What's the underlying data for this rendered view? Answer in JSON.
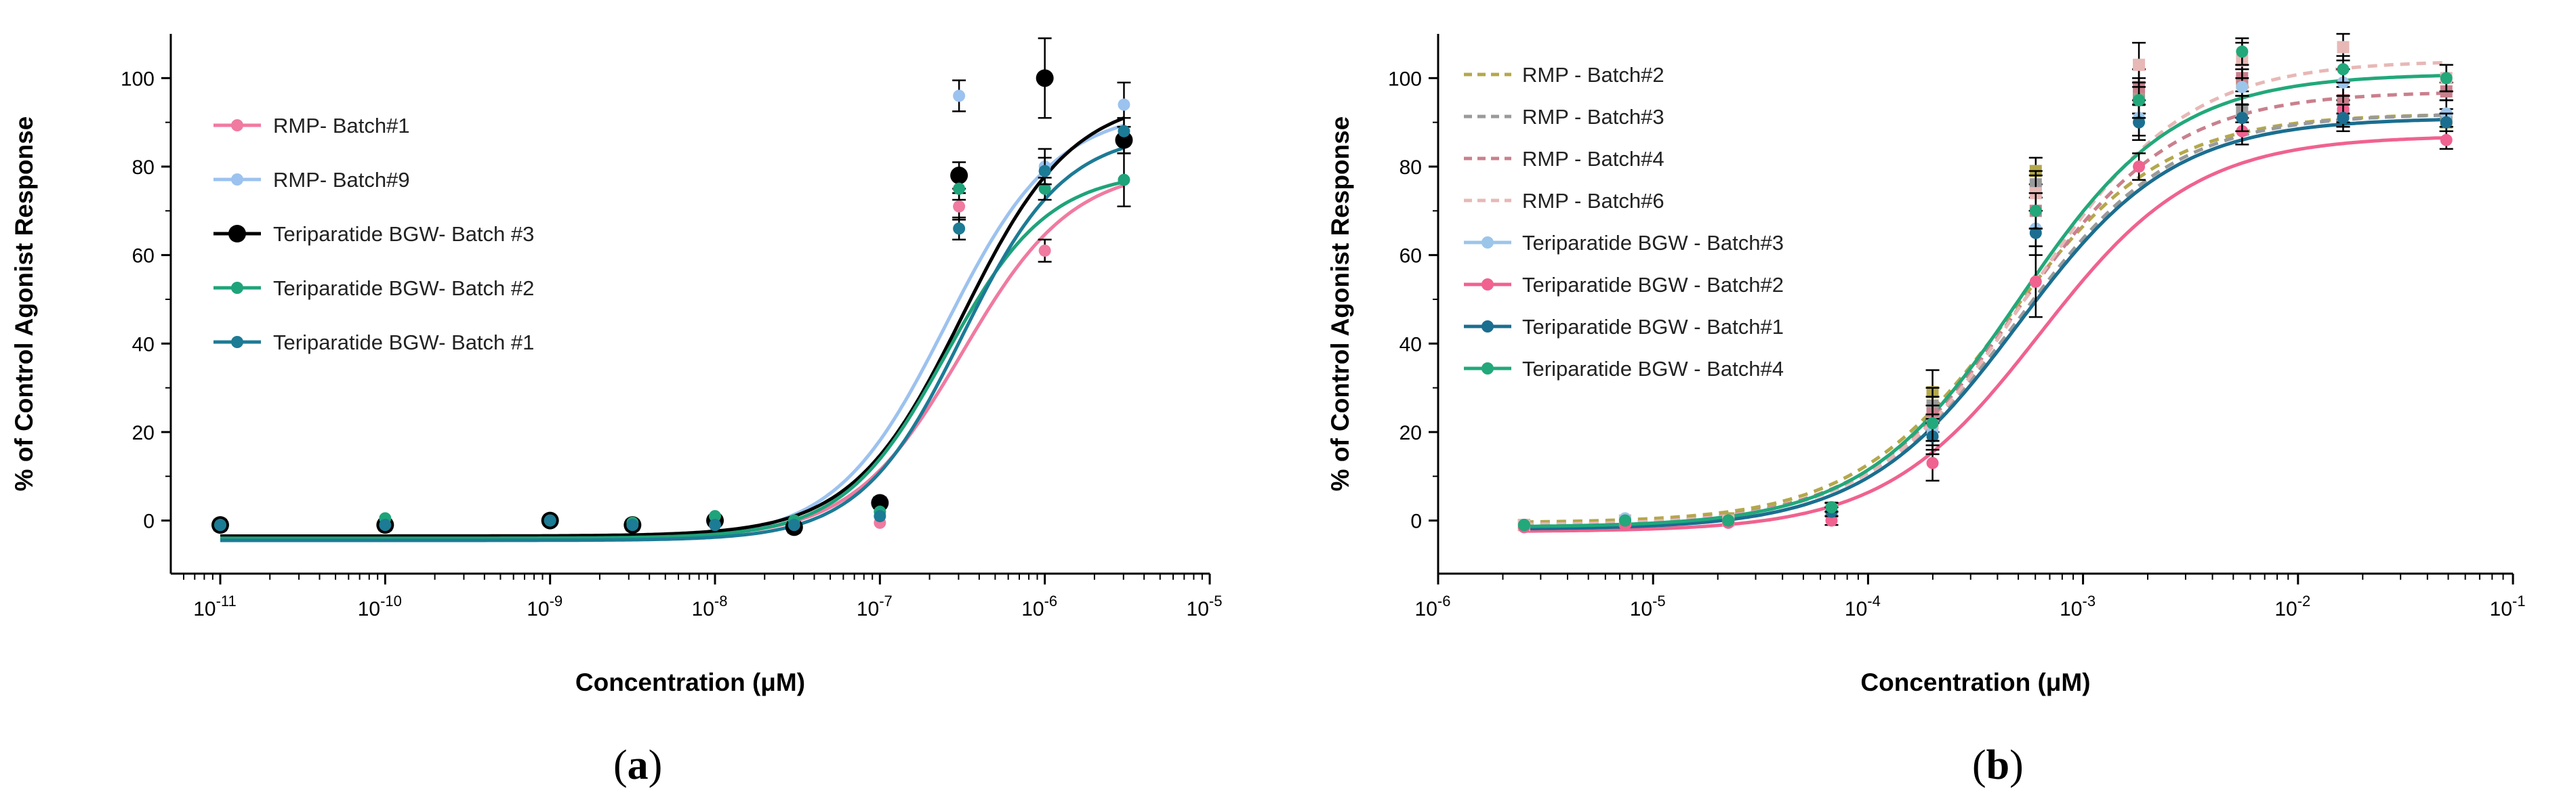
{
  "chart_data": [
    {
      "panel_label": "(a)",
      "type": "line",
      "xscale": "log",
      "xlabel": "Concentration (μM)",
      "ylabel": "% of Control Agonist Response",
      "xlim_exp": [
        -11.3,
        -5
      ],
      "ylim": [
        -12,
        110
      ],
      "x_ticks": [
        {
          "base": "10",
          "exp": "-11"
        },
        {
          "base": "10",
          "exp": "-10"
        },
        {
          "base": "10",
          "exp": "-9"
        },
        {
          "base": "10",
          "exp": "-8"
        },
        {
          "base": "10",
          "exp": "-7"
        },
        {
          "base": "10",
          "exp": "-6"
        },
        {
          "base": "10",
          "exp": "-5"
        }
      ],
      "y_ticks": [
        "0",
        "20",
        "40",
        "60",
        "80",
        "100"
      ],
      "legend_position": "upper-left",
      "series": [
        {
          "name": "RMP- Batch#1",
          "color": "#f07aa0",
          "marker_size": 9,
          "dashed": false,
          "fit": {
            "bottom": -4,
            "top": 80,
            "logEC50": -6.5,
            "hill": 1.3
          },
          "points": [
            {
              "x": -11,
              "y": -1,
              "err": 0
            },
            {
              "x": -10,
              "y": -1,
              "err": 0
            },
            {
              "x": -9,
              "y": 0,
              "err": 0
            },
            {
              "x": -8.5,
              "y": -1,
              "err": 0
            },
            {
              "x": -8,
              "y": 0,
              "err": 0
            },
            {
              "x": -7.52,
              "y": -1,
              "err": 0
            },
            {
              "x": -7,
              "y": -0.5,
              "err": 0
            },
            {
              "x": -6.52,
              "y": 71,
              "err": 3
            },
            {
              "x": -6,
              "y": 61,
              "err": 2.5
            },
            {
              "x": -5.52,
              "y": 86,
              "err": 3
            }
          ]
        },
        {
          "name": "RMP- Batch#9",
          "color": "#9cc2ef",
          "marker_size": 9,
          "dashed": false,
          "fit": {
            "bottom": -4.5,
            "top": 93,
            "logEC50": -6.6,
            "hill": 1.3
          },
          "points": [
            {
              "x": -11,
              "y": -1,
              "err": 0
            },
            {
              "x": -10,
              "y": -1,
              "err": 0
            },
            {
              "x": -9,
              "y": 0,
              "err": 0
            },
            {
              "x": -8.5,
              "y": -1,
              "err": 0
            },
            {
              "x": -8,
              "y": 0.5,
              "err": 0
            },
            {
              "x": -7.52,
              "y": -1,
              "err": 0
            },
            {
              "x": -7,
              "y": 2,
              "err": 0
            },
            {
              "x": -6.52,
              "y": 96,
              "err": 3.5
            },
            {
              "x": -6,
              "y": 80,
              "err": 4
            },
            {
              "x": -5.52,
              "y": 94,
              "err": 5
            }
          ]
        },
        {
          "name": "Teriparatide BGW- Batch #3",
          "color": "#000000",
          "marker_size": 13,
          "dashed": false,
          "fit": {
            "bottom": -3.5,
            "top": 96,
            "logEC50": -6.5,
            "hill": 1.3
          },
          "points": [
            {
              "x": -11,
              "y": -1,
              "err": 1.2
            },
            {
              "x": -10,
              "y": -1,
              "err": 1.2
            },
            {
              "x": -9,
              "y": 0,
              "err": 1
            },
            {
              "x": -8.5,
              "y": -1,
              "err": 1.2
            },
            {
              "x": -8,
              "y": 0,
              "err": 1
            },
            {
              "x": -7.52,
              "y": -1.5,
              "err": 1.2
            },
            {
              "x": -7,
              "y": 4,
              "err": 1.2
            },
            {
              "x": -6.52,
              "y": 78,
              "err": 3
            },
            {
              "x": -6,
              "y": 100,
              "err": 9
            },
            {
              "x": -5.52,
              "y": 86,
              "err": 3
            }
          ]
        },
        {
          "name": "Teriparatide BGW- Batch #2",
          "color": "#1fa37a",
          "marker_size": 9,
          "dashed": false,
          "fit": {
            "bottom": -4,
            "top": 79,
            "logEC50": -6.6,
            "hill": 1.4
          },
          "points": [
            {
              "x": -11,
              "y": -1,
              "err": 0
            },
            {
              "x": -10,
              "y": 0.5,
              "err": 0
            },
            {
              "x": -9,
              "y": 0,
              "err": 0
            },
            {
              "x": -8.5,
              "y": -0.5,
              "err": 0
            },
            {
              "x": -8,
              "y": 1,
              "err": 0
            },
            {
              "x": -7.52,
              "y": 0,
              "err": 0
            },
            {
              "x": -7,
              "y": 2,
              "err": 0
            },
            {
              "x": -6.52,
              "y": 75,
              "err": 2.5
            },
            {
              "x": -6,
              "y": 75,
              "err": 2.5
            },
            {
              "x": -5.52,
              "y": 77,
              "err": 6
            }
          ]
        },
        {
          "name": "Teriparatide BGW- Batch #1",
          "color": "#1c7b95",
          "marker_size": 9,
          "dashed": false,
          "fit": {
            "bottom": -4.5,
            "top": 88,
            "logEC50": -6.5,
            "hill": 1.4
          },
          "points": [
            {
              "x": -11,
              "y": -1,
              "err": 0
            },
            {
              "x": -10,
              "y": -1,
              "err": 0
            },
            {
              "x": -9,
              "y": 0,
              "err": 0
            },
            {
              "x": -8.5,
              "y": -1,
              "err": 0
            },
            {
              "x": -8,
              "y": -1,
              "err": 0
            },
            {
              "x": -7.52,
              "y": -1,
              "err": 0
            },
            {
              "x": -7,
              "y": 1,
              "err": 0
            },
            {
              "x": -6.52,
              "y": 66,
              "err": 2.5
            },
            {
              "x": -6,
              "y": 79,
              "err": 3
            },
            {
              "x": -5.52,
              "y": 88,
              "err": 3
            }
          ]
        }
      ]
    },
    {
      "panel_label": "(b)",
      "type": "line",
      "xscale": "log",
      "xlabel": "Concentration (μM)",
      "ylabel": "% of Control Agonist Response",
      "xlim_exp": [
        -6,
        -1
      ],
      "ylim": [
        -12,
        110
      ],
      "x_ticks": [
        {
          "base": "10",
          "exp": "-6"
        },
        {
          "base": "10",
          "exp": "-5"
        },
        {
          "base": "10",
          "exp": "-4"
        },
        {
          "base": "10",
          "exp": "-3"
        },
        {
          "base": "10",
          "exp": "-2"
        },
        {
          "base": "10",
          "exp": "-1"
        }
      ],
      "y_ticks": [
        "0",
        "20",
        "40",
        "60",
        "80",
        "100"
      ],
      "legend_position": "upper-left",
      "series": [
        {
          "name": "RMP - Batch#2",
          "color": "#b4a84c",
          "marker_size": 9,
          "dashed": true,
          "fit": {
            "bottom": -0.5,
            "top": 92,
            "logEC50": -3.35,
            "hill": 1.2
          },
          "points": [
            {
              "x": -5.6,
              "y": -1,
              "err": 0
            },
            {
              "x": -5.13,
              "y": 0,
              "err": 0
            },
            {
              "x": -4.65,
              "y": 0.5,
              "err": 0
            },
            {
              "x": -4.17,
              "y": 3,
              "err": 1
            },
            {
              "x": -3.7,
              "y": 29,
              "err": 5
            },
            {
              "x": -3.22,
              "y": 79,
              "err": 3
            },
            {
              "x": -2.74,
              "y": 96,
              "err": 4
            },
            {
              "x": -2.26,
              "y": 99,
              "err": 3
            },
            {
              "x": -1.79,
              "y": 92,
              "err": 3
            },
            {
              "x": -1.31,
              "y": 90,
              "err": 2
            }
          ]
        },
        {
          "name": "RMP - Batch#3",
          "color": "#9a9a9a",
          "marker_size": 9,
          "dashed": true,
          "fit": {
            "bottom": -1,
            "top": 92,
            "logEC50": -3.3,
            "hill": 1.2
          },
          "points": [
            {
              "x": -5.6,
              "y": -1,
              "err": 0
            },
            {
              "x": -5.13,
              "y": 0,
              "err": 0
            },
            {
              "x": -4.65,
              "y": 0,
              "err": 0
            },
            {
              "x": -4.17,
              "y": 3,
              "err": 1
            },
            {
              "x": -3.7,
              "y": 26,
              "err": 4
            },
            {
              "x": -3.22,
              "y": 76,
              "err": 3
            },
            {
              "x": -2.74,
              "y": 95,
              "err": 4
            },
            {
              "x": -2.26,
              "y": 93,
              "err": 3
            },
            {
              "x": -1.79,
              "y": 92,
              "err": 3
            },
            {
              "x": -1.31,
              "y": 91,
              "err": 2
            }
          ]
        },
        {
          "name": "RMP - Batch#4",
          "color": "#c9808d",
          "marker_size": 9,
          "dashed": true,
          "fit": {
            "bottom": -1,
            "top": 97,
            "logEC50": -3.3,
            "hill": 1.2
          },
          "points": [
            {
              "x": -5.6,
              "y": -1,
              "err": 0
            },
            {
              "x": -5.13,
              "y": 0,
              "err": 0
            },
            {
              "x": -4.65,
              "y": 0,
              "err": 0
            },
            {
              "x": -4.17,
              "y": 2,
              "err": 1
            },
            {
              "x": -3.7,
              "y": 24,
              "err": 4
            },
            {
              "x": -3.22,
              "y": 70,
              "err": 4
            },
            {
              "x": -2.74,
              "y": 98,
              "err": 4
            },
            {
              "x": -2.26,
              "y": 100,
              "err": 3
            },
            {
              "x": -1.79,
              "y": 95,
              "err": 3
            },
            {
              "x": -1.31,
              "y": 97,
              "err": 2
            }
          ]
        },
        {
          "name": "RMP - Batch#6",
          "color": "#e7b8b6",
          "marker_size": 9,
          "dashed": true,
          "fit": {
            "bottom": -1,
            "top": 104,
            "logEC50": -3.25,
            "hill": 1.2
          },
          "points": [
            {
              "x": -5.6,
              "y": -1,
              "err": 0
            },
            {
              "x": -5.13,
              "y": 0,
              "err": 0
            },
            {
              "x": -4.65,
              "y": 0,
              "err": 0
            },
            {
              "x": -4.17,
              "y": 3,
              "err": 1
            },
            {
              "x": -3.7,
              "y": 22,
              "err": 4
            },
            {
              "x": -3.22,
              "y": 74,
              "err": 4
            },
            {
              "x": -2.74,
              "y": 103,
              "err": 5
            },
            {
              "x": -2.26,
              "y": 104,
              "err": 4
            },
            {
              "x": -1.79,
              "y": 107,
              "err": 3
            },
            {
              "x": -1.31,
              "y": 100,
              "err": 3
            }
          ]
        },
        {
          "name": "Teriparatide BGW - Batch#3",
          "color": "#9cc5ea",
          "marker_size": 9,
          "dashed": false,
          "fit": {
            "bottom": -2,
            "top": 91,
            "logEC50": -3.3,
            "hill": 1.2
          },
          "points": [
            {
              "x": -5.6,
              "y": -1,
              "err": 0
            },
            {
              "x": -5.13,
              "y": 0.5,
              "err": 0
            },
            {
              "x": -4.65,
              "y": 0,
              "err": 0
            },
            {
              "x": -4.17,
              "y": 3,
              "err": 1
            },
            {
              "x": -3.7,
              "y": 20,
              "err": 4
            },
            {
              "x": -3.22,
              "y": 66,
              "err": 4
            },
            {
              "x": -2.74,
              "y": 91,
              "err": 4
            },
            {
              "x": -2.26,
              "y": 98,
              "err": 4
            },
            {
              "x": -1.79,
              "y": 99,
              "err": 3
            },
            {
              "x": -1.31,
              "y": 92,
              "err": 3
            }
          ]
        },
        {
          "name": "Teriparatide BGW - Batch#2",
          "color": "#f0628f",
          "marker_size": 9,
          "dashed": false,
          "fit": {
            "bottom": -2.5,
            "top": 87,
            "logEC50": -3.2,
            "hill": 1.2
          },
          "points": [
            {
              "x": -5.6,
              "y": -1.5,
              "err": 0
            },
            {
              "x": -5.13,
              "y": -1,
              "err": 0
            },
            {
              "x": -4.65,
              "y": -0.5,
              "err": 0
            },
            {
              "x": -4.17,
              "y": 0,
              "err": 1
            },
            {
              "x": -3.7,
              "y": 13,
              "err": 4
            },
            {
              "x": -3.22,
              "y": 54,
              "err": 8
            },
            {
              "x": -2.74,
              "y": 80,
              "err": 3
            },
            {
              "x": -2.26,
              "y": 88,
              "err": 3
            },
            {
              "x": -1.79,
              "y": 93,
              "err": 3
            },
            {
              "x": -1.31,
              "y": 86,
              "err": 2
            }
          ]
        },
        {
          "name": "Teriparatide BGW - Batch#1",
          "color": "#1b6e8f",
          "marker_size": 9,
          "dashed": false,
          "fit": {
            "bottom": -2,
            "top": 91,
            "logEC50": -3.3,
            "hill": 1.2
          },
          "points": [
            {
              "x": -5.6,
              "y": -1,
              "err": 0
            },
            {
              "x": -5.13,
              "y": 0,
              "err": 0
            },
            {
              "x": -4.65,
              "y": 0,
              "err": 0
            },
            {
              "x": -4.17,
              "y": 2,
              "err": 1
            },
            {
              "x": -3.7,
              "y": 19,
              "err": 4
            },
            {
              "x": -3.22,
              "y": 65,
              "err": 5
            },
            {
              "x": -2.74,
              "y": 90,
              "err": 4
            },
            {
              "x": -2.26,
              "y": 91,
              "err": 3
            },
            {
              "x": -1.79,
              "y": 91,
              "err": 3
            },
            {
              "x": -1.31,
              "y": 90,
              "err": 2
            }
          ]
        },
        {
          "name": "Teriparatide BGW - Batch#4",
          "color": "#22a87a",
          "marker_size": 9,
          "dashed": false,
          "fit": {
            "bottom": -1.5,
            "top": 101,
            "logEC50": -3.3,
            "hill": 1.2
          },
          "points": [
            {
              "x": -5.6,
              "y": -1,
              "err": 0
            },
            {
              "x": -5.13,
              "y": 0,
              "err": 0
            },
            {
              "x": -4.65,
              "y": 0,
              "err": 0
            },
            {
              "x": -4.17,
              "y": 3,
              "err": 1
            },
            {
              "x": -3.7,
              "y": 22,
              "err": 4
            },
            {
              "x": -3.22,
              "y": 70,
              "err": 4
            },
            {
              "x": -2.74,
              "y": 95,
              "err": 4
            },
            {
              "x": -2.26,
              "y": 106,
              "err": 3
            },
            {
              "x": -1.79,
              "y": 102,
              "err": 3
            },
            {
              "x": -1.31,
              "y": 100,
              "err": 3
            }
          ]
        }
      ]
    }
  ]
}
